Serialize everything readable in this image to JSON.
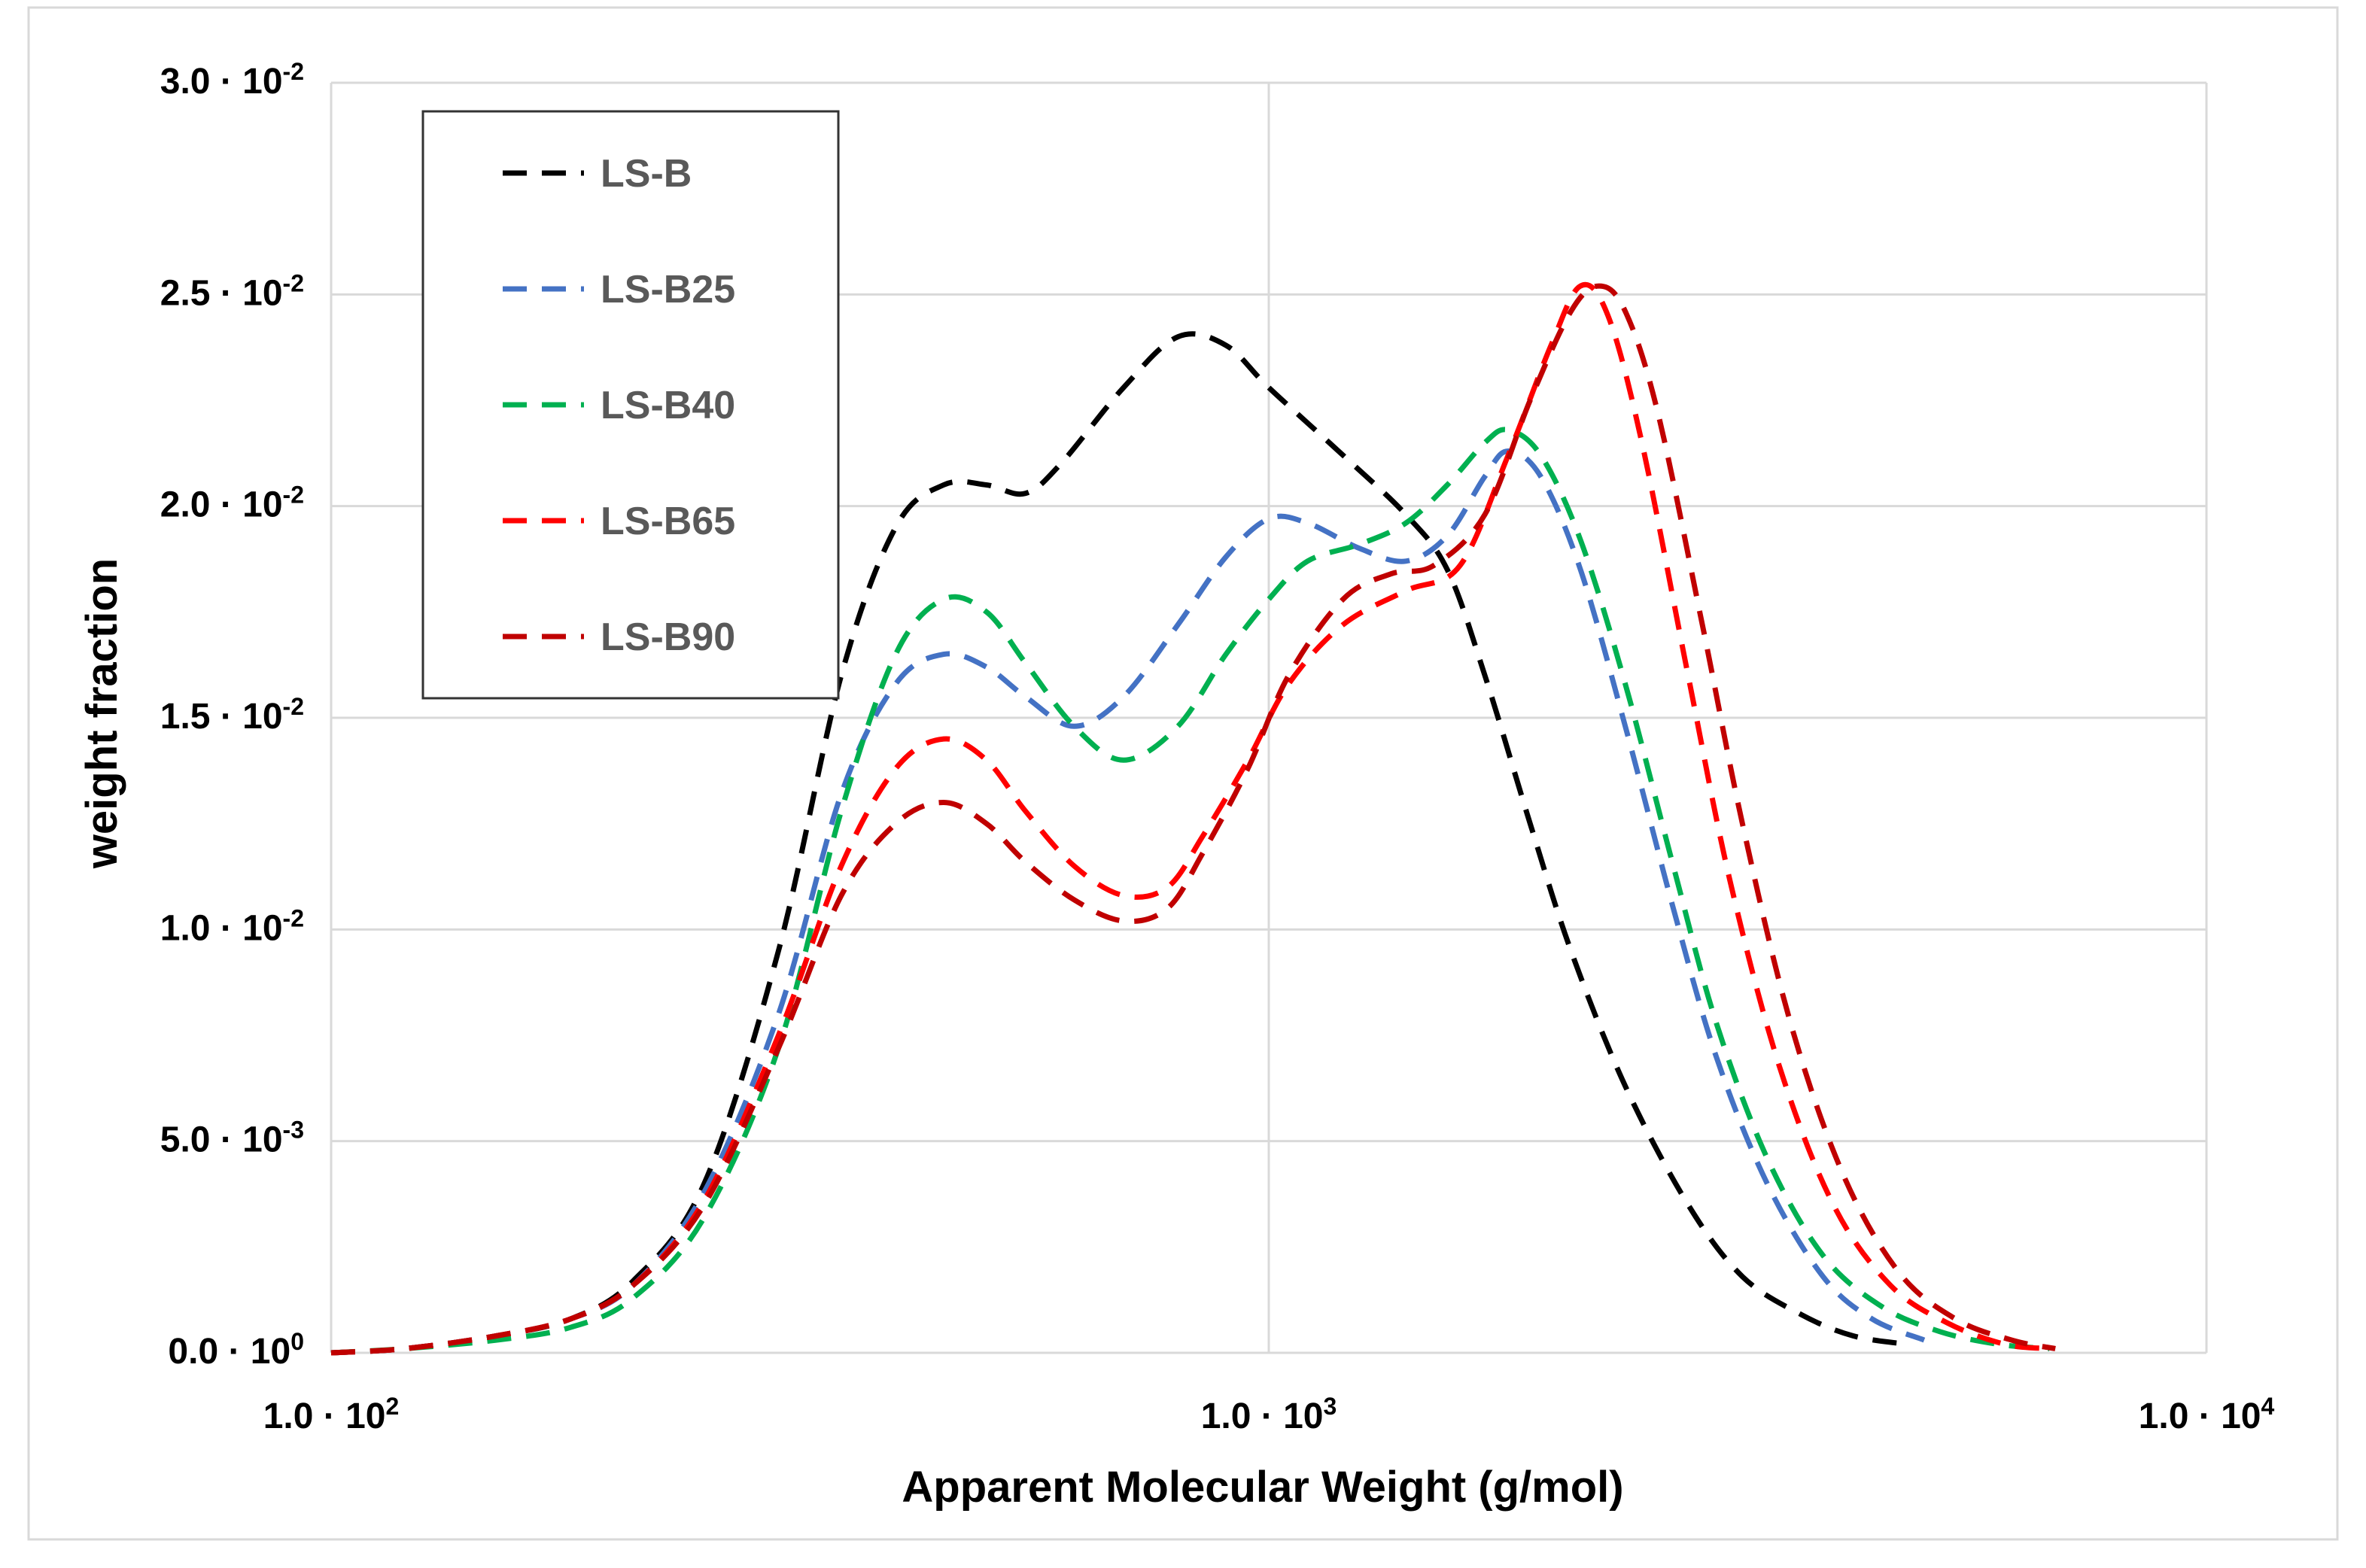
{
  "chart_data": {
    "type": "line",
    "title": "",
    "xlabel": "Apparent Molecular Weight (g/mol)",
    "ylabel": "weight fraction",
    "xscale": "log",
    "xlim": [
      100,
      10000
    ],
    "ylim": [
      0,
      0.03
    ],
    "grid": true,
    "legend_position": "top-left",
    "y_ticks": [
      {
        "value": 0,
        "label": "0.0 · 10",
        "exp": "0"
      },
      {
        "value": 0.005,
        "label": "5.0 · 10",
        "exp": "-3"
      },
      {
        "value": 0.01,
        "label": "1.0 · 10",
        "exp": "-2"
      },
      {
        "value": 0.015,
        "label": "1.5 · 10",
        "exp": "-2"
      },
      {
        "value": 0.02,
        "label": "2.0 · 10",
        "exp": "-2"
      },
      {
        "value": 0.025,
        "label": "2.5 · 10",
        "exp": "-2"
      },
      {
        "value": 0.03,
        "label": "3.0 · 10",
        "exp": "-2"
      }
    ],
    "x_ticks": [
      {
        "value": 100,
        "label": "1.0 · 10",
        "exp": "2"
      },
      {
        "value": 1000,
        "label": "1.0 · 10",
        "exp": "3"
      },
      {
        "value": 10000,
        "label": "1.0 · 10",
        "exp": "4"
      }
    ],
    "series": [
      {
        "name": "LS-B",
        "color": "#000000",
        "points": [
          [
            100,
            0
          ],
          [
            120,
            0.0001
          ],
          [
            150,
            0.0004
          ],
          [
            180,
            0.0008
          ],
          [
            210,
            0.0017
          ],
          [
            250,
            0.004
          ],
          [
            300,
            0.0095
          ],
          [
            350,
            0.016
          ],
          [
            400,
            0.0195
          ],
          [
            450,
            0.0205
          ],
          [
            500,
            0.0205
          ],
          [
            550,
            0.0203
          ],
          [
            600,
            0.021
          ],
          [
            700,
            0.0228
          ],
          [
            800,
            0.024
          ],
          [
            900,
            0.0238
          ],
          [
            1000,
            0.0228
          ],
          [
            1200,
            0.0212
          ],
          [
            1400,
            0.0198
          ],
          [
            1550,
            0.0185
          ],
          [
            1700,
            0.016
          ],
          [
            1900,
            0.0125
          ],
          [
            2100,
            0.0095
          ],
          [
            2400,
            0.0063
          ],
          [
            2800,
            0.0035
          ],
          [
            3200,
            0.0018
          ],
          [
            3700,
            0.0009
          ],
          [
            4200,
            0.0004
          ],
          [
            4800,
            0.0002
          ]
        ]
      },
      {
        "name": "LS-B25",
        "color": "#4472c4",
        "points": [
          [
            100,
            0
          ],
          [
            120,
            0.0001
          ],
          [
            150,
            0.0004
          ],
          [
            180,
            0.0008
          ],
          [
            210,
            0.0016
          ],
          [
            250,
            0.0038
          ],
          [
            300,
            0.008
          ],
          [
            350,
            0.0132
          ],
          [
            400,
            0.0158
          ],
          [
            450,
            0.0165
          ],
          [
            500,
            0.0162
          ],
          [
            550,
            0.0155
          ],
          [
            620,
            0.0148
          ],
          [
            700,
            0.0155
          ],
          [
            800,
            0.0172
          ],
          [
            900,
            0.0188
          ],
          [
            1000,
            0.0197
          ],
          [
            1100,
            0.0196
          ],
          [
            1250,
            0.019
          ],
          [
            1400,
            0.0187
          ],
          [
            1550,
            0.0193
          ],
          [
            1700,
            0.0207
          ],
          [
            1800,
            0.0213
          ],
          [
            1950,
            0.0207
          ],
          [
            2150,
            0.0185
          ],
          [
            2400,
            0.0148
          ],
          [
            2700,
            0.0105
          ],
          [
            3000,
            0.007
          ],
          [
            3400,
            0.004
          ],
          [
            3900,
            0.0018
          ],
          [
            4400,
            0.0008
          ],
          [
            5000,
            0.0003
          ]
        ]
      },
      {
        "name": "LS-B40",
        "color": "#00b050",
        "points": [
          [
            100,
            0
          ],
          [
            120,
            0.0001
          ],
          [
            150,
            0.0003
          ],
          [
            180,
            0.0006
          ],
          [
            210,
            0.0013
          ],
          [
            250,
            0.0032
          ],
          [
            300,
            0.0072
          ],
          [
            350,
            0.0128
          ],
          [
            400,
            0.0165
          ],
          [
            450,
            0.0178
          ],
          [
            500,
            0.0175
          ],
          [
            550,
            0.0163
          ],
          [
            620,
            0.0148
          ],
          [
            700,
            0.014
          ],
          [
            800,
            0.0148
          ],
          [
            900,
            0.0165
          ],
          [
            1000,
            0.0178
          ],
          [
            1100,
            0.0187
          ],
          [
            1250,
            0.0191
          ],
          [
            1400,
            0.0196
          ],
          [
            1550,
            0.0205
          ],
          [
            1700,
            0.0215
          ],
          [
            1800,
            0.0218
          ],
          [
            1950,
            0.0212
          ],
          [
            2150,
            0.0192
          ],
          [
            2400,
            0.0158
          ],
          [
            2700,
            0.0115
          ],
          [
            3000,
            0.0078
          ],
          [
            3400,
            0.0046
          ],
          [
            3900,
            0.0023
          ],
          [
            4500,
            0.0011
          ],
          [
            5200,
            0.0005
          ],
          [
            6000,
            0.0002
          ],
          [
            6800,
            0.0001
          ]
        ]
      },
      {
        "name": "LS-B65",
        "color": "#ff0000",
        "points": [
          [
            100,
            0
          ],
          [
            120,
            0.0001
          ],
          [
            150,
            0.0004
          ],
          [
            180,
            0.0008
          ],
          [
            210,
            0.0016
          ],
          [
            250,
            0.0036
          ],
          [
            300,
            0.0075
          ],
          [
            350,
            0.0115
          ],
          [
            400,
            0.0138
          ],
          [
            450,
            0.0145
          ],
          [
            500,
            0.014
          ],
          [
            550,
            0.0128
          ],
          [
            620,
            0.0115
          ],
          [
            700,
            0.0108
          ],
          [
            780,
            0.011
          ],
          [
            850,
            0.0122
          ],
          [
            950,
            0.014
          ],
          [
            1050,
            0.0158
          ],
          [
            1200,
            0.0172
          ],
          [
            1400,
            0.018
          ],
          [
            1600,
            0.0186
          ],
          [
            1800,
            0.0212
          ],
          [
            2000,
            0.0238
          ],
          [
            2150,
            0.0252
          ],
          [
            2300,
            0.0245
          ],
          [
            2500,
            0.0215
          ],
          [
            2800,
            0.016
          ],
          [
            3100,
            0.0112
          ],
          [
            3500,
            0.0068
          ],
          [
            4000,
            0.0035
          ],
          [
            4600,
            0.0016
          ],
          [
            5300,
            0.0007
          ],
          [
            6100,
            0.0002
          ],
          [
            6800,
            0.0001
          ]
        ]
      },
      {
        "name": "LS-B90",
        "color": "#c00000",
        "points": [
          [
            100,
            0
          ],
          [
            120,
            0.0001
          ],
          [
            150,
            0.0004
          ],
          [
            180,
            0.0008
          ],
          [
            210,
            0.0016
          ],
          [
            250,
            0.0035
          ],
          [
            300,
            0.0072
          ],
          [
            350,
            0.0108
          ],
          [
            400,
            0.0125
          ],
          [
            450,
            0.013
          ],
          [
            500,
            0.0125
          ],
          [
            550,
            0.0116
          ],
          [
            620,
            0.0107
          ],
          [
            700,
            0.0102
          ],
          [
            780,
            0.0105
          ],
          [
            850,
            0.0118
          ],
          [
            950,
            0.0138
          ],
          [
            1050,
            0.016
          ],
          [
            1200,
            0.0178
          ],
          [
            1350,
            0.0184
          ],
          [
            1500,
            0.0186
          ],
          [
            1700,
            0.0198
          ],
          [
            1900,
            0.0225
          ],
          [
            2100,
            0.0246
          ],
          [
            2250,
            0.0252
          ],
          [
            2400,
            0.0246
          ],
          [
            2600,
            0.0222
          ],
          [
            2900,
            0.0172
          ],
          [
            3200,
            0.0125
          ],
          [
            3600,
            0.0078
          ],
          [
            4100,
            0.0042
          ],
          [
            4700,
            0.0019
          ],
          [
            5400,
            0.0008
          ],
          [
            6200,
            0.0003
          ],
          [
            6900,
            0.0001
          ]
        ]
      }
    ]
  }
}
